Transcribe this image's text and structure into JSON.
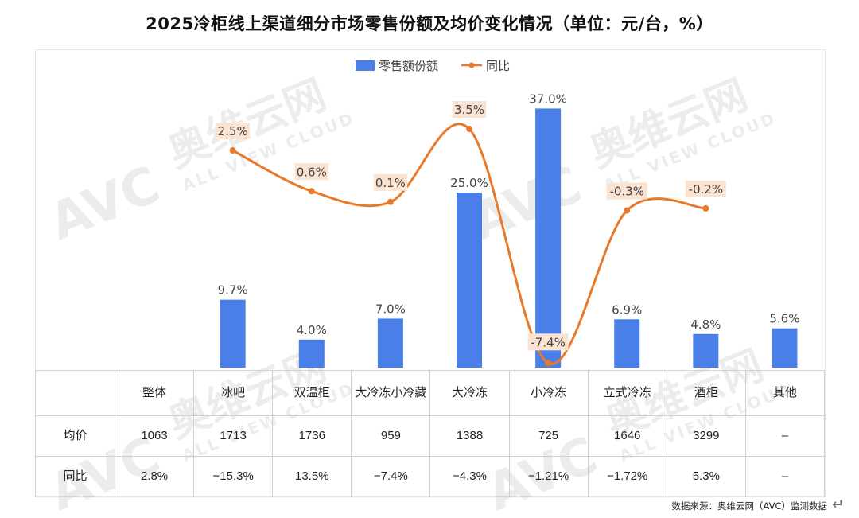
{
  "title": "2025冷柜线上渠道细分市场零售份额及均价变化情况（单位：元/台，%）",
  "source": "数据来源：奥维云网（AVC）监测数据",
  "enter_glyph": "↵",
  "watermark": {
    "cn": "奥维云网",
    "en": "ALL VIEW CLOUD",
    "logo": "AVC"
  },
  "colors": {
    "bar": "#4a7fe8",
    "line": "#e8792a",
    "label_bg": "#fbe3d2"
  },
  "chart_data": {
    "type": "bar",
    "categories": [
      "整体",
      "冰吧",
      "双温柜",
      "大冷冻小冷藏",
      "大冷冻",
      "小冷冻",
      "立式冷冻",
      "酒柜",
      "其他"
    ],
    "legend": {
      "bar": "零售额份额",
      "line": "同比",
      "placement": "top-center"
    },
    "series": [
      {
        "name": "零售额份额",
        "type": "bar",
        "values": [
          null,
          9.7,
          4.0,
          7.0,
          25.0,
          37.0,
          6.9,
          4.8,
          5.6
        ],
        "labels": [
          "",
          "9.7%",
          "4.0%",
          "7.0%",
          "25.0%",
          "37.0%",
          "6.9%",
          "4.8%",
          "5.6%"
        ]
      },
      {
        "name": "同比",
        "type": "line",
        "values": [
          null,
          2.5,
          0.6,
          0.1,
          3.5,
          -7.4,
          -0.3,
          -0.2,
          null
        ],
        "labels": [
          "",
          "2.5%",
          "0.6%",
          "0.1%",
          "3.5%",
          "-7.4%",
          "-0.3%",
          "-0.2%",
          ""
        ]
      }
    ],
    "grid": false
  },
  "table": {
    "header": [
      "",
      "整体",
      "冰吧",
      "双温柜",
      "大冷冻小冷藏",
      "大冷冻",
      "小冷冻",
      "立式冷冻",
      "酒柜",
      "其他"
    ],
    "rows": [
      [
        "均价",
        "1063",
        "1713",
        "1736",
        "959",
        "1388",
        "725",
        "1646",
        "3299",
        "–"
      ],
      [
        "同比",
        "2.8%",
        "−15.3%",
        "13.5%",
        "−7.4%",
        "−4.3%",
        "−1.21%",
        "−1.72%",
        "5.3%",
        "–"
      ]
    ]
  }
}
